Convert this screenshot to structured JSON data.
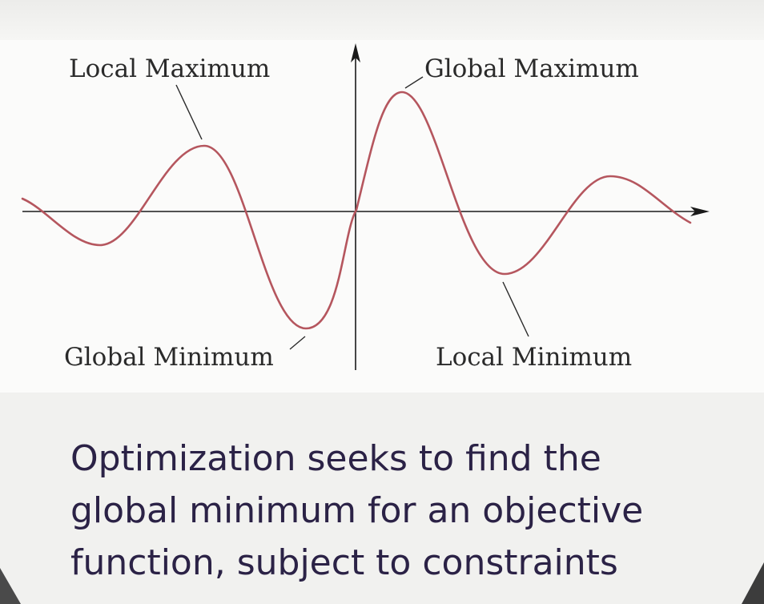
{
  "diagram": {
    "labels": {
      "local_maximum": "Local Maximum",
      "global_maximum": "Global Maximum",
      "global_minimum": "Global Minimum",
      "local_minimum": "Local Minimum"
    },
    "curve_color": "#b5565e",
    "axis_color": "#1a1a1a"
  },
  "caption": {
    "line1": "Optimization seeks to find the",
    "line2": "global minimum for an objective",
    "line3": "function, subject to constraints"
  }
}
